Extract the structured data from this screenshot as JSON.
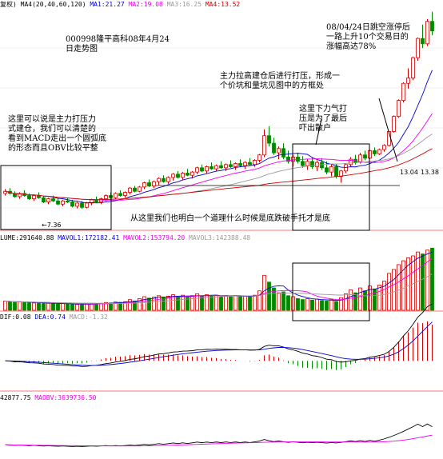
{
  "header": {
    "main": [
      {
        "text": "复权)",
        "color": "#000000"
      },
      {
        "text": "MA4(20,40,60,120)",
        "color": "#000000"
      },
      {
        "text": "MA1:21.27",
        "color": "#0000cc"
      },
      {
        "text": "MA2:19.08",
        "color": "#ee00ee"
      },
      {
        "text": "MA3:16.25",
        "color": "#999999"
      },
      {
        "text": "MA4:13.52",
        "color": "#cc0000"
      }
    ],
    "volume": [
      {
        "text": "LUME:291640.88",
        "color": "#000000"
      },
      {
        "text": "MAVOL1:172182.41",
        "color": "#0000cc"
      },
      {
        "text": "MAVOL2:153794.20",
        "color": "#ee00ee"
      },
      {
        "text": "MAVOL3:142388.48",
        "color": "#999999"
      }
    ],
    "macd": [
      {
        "text": "DIF:0.08",
        "color": "#000000"
      },
      {
        "text": "DEA:0.74",
        "color": "#0000cc"
      },
      {
        "text": "MACD:-1.32",
        "color": "#999999"
      }
    ],
    "obv": [
      {
        "text": "42877.75",
        "color": "#000000"
      },
      {
        "text": "MAOBV:3639736.50",
        "color": "#ee00ee"
      }
    ]
  },
  "annotations": {
    "title": [
      "000998隆平高科08年4月24",
      "日走势图"
    ],
    "left_note": [
      "这里可以说是主力打压力",
      "式建仓，我们可以清楚的",
      "看到MACD走出一个圆弧底",
      "的形态而且OBV比较平整"
    ],
    "top_note": [
      "主力拉高建仓后进行打压，形成一",
      "个价坑和量坑见图中的方框处"
    ],
    "center_note": [
      "这里下力气打",
      "压是为了最后",
      "吓出散户"
    ],
    "right_note": [
      "08/04/24日跳空涨停后",
      "一路上升10个交易日的",
      "涨幅高达78%"
    ],
    "bottom_note": "从这里我们也明白一个道理什么时候是底跌破手托才是底",
    "low_label": "←7.36",
    "price_label": "13.04",
    "price_label2": "13.38"
  },
  "chart_data": {
    "type": "candlestick",
    "title": "000998隆平高科08年4月24日走势图",
    "price_ylim": [
      5.5,
      26
    ],
    "volume_ylim": [
      0,
      700000
    ],
    "macd_ylim": [
      -1.6,
      2.2
    ],
    "obv_ylim": [
      -3000000,
      10000000
    ],
    "colors": {
      "up": "#cc0000",
      "down": "#008800",
      "ma1": "#0000cc",
      "ma2": "#ee00ee",
      "ma3": "#999999",
      "ma4": "#cc0000"
    },
    "candles": [
      [
        8.8,
        9.2,
        8.6,
        9.0
      ],
      [
        9.0,
        9.3,
        8.7,
        8.8
      ],
      [
        8.8,
        9.0,
        8.4,
        8.5
      ],
      [
        8.5,
        8.9,
        8.3,
        8.8
      ],
      [
        8.8,
        9.1,
        8.5,
        8.6
      ],
      [
        8.6,
        8.8,
        8.2,
        8.3
      ],
      [
        8.3,
        8.7,
        8.1,
        8.6
      ],
      [
        8.6,
        8.9,
        8.3,
        8.4
      ],
      [
        8.4,
        8.6,
        7.9,
        8.0
      ],
      [
        8.0,
        8.4,
        7.8,
        8.3
      ],
      [
        8.3,
        8.6,
        8.0,
        8.1
      ],
      [
        8.1,
        8.3,
        7.7,
        7.8
      ],
      [
        7.8,
        8.2,
        7.6,
        8.1
      ],
      [
        8.1,
        8.4,
        7.9,
        8.0
      ],
      [
        8.0,
        8.2,
        7.5,
        7.6
      ],
      [
        7.6,
        8.0,
        7.4,
        7.9
      ],
      [
        7.9,
        8.1,
        7.36,
        7.5
      ],
      [
        7.5,
        8.0,
        7.4,
        7.9
      ],
      [
        7.9,
        8.3,
        7.7,
        8.2
      ],
      [
        8.2,
        8.5,
        7.9,
        8.0
      ],
      [
        8.0,
        8.4,
        7.8,
        8.3
      ],
      [
        8.3,
        8.7,
        8.1,
        8.6
      ],
      [
        8.6,
        8.9,
        8.3,
        8.4
      ],
      [
        8.4,
        8.9,
        8.3,
        8.8
      ],
      [
        8.8,
        9.1,
        8.5,
        8.6
      ],
      [
        8.6,
        9.0,
        8.4,
        8.9
      ],
      [
        8.9,
        9.4,
        8.7,
        9.3
      ],
      [
        9.3,
        9.5,
        8.9,
        9.0
      ],
      [
        9.0,
        9.5,
        8.9,
        9.4
      ],
      [
        9.4,
        9.9,
        9.2,
        9.8
      ],
      [
        9.8,
        10.1,
        9.4,
        9.5
      ],
      [
        9.5,
        10.0,
        9.3,
        9.9
      ],
      [
        9.9,
        10.3,
        9.6,
        10.2
      ],
      [
        10.2,
        10.5,
        9.8,
        9.9
      ],
      [
        9.9,
        10.4,
        9.7,
        10.3
      ],
      [
        10.3,
        10.7,
        10.0,
        10.6
      ],
      [
        10.6,
        10.9,
        10.2,
        10.3
      ],
      [
        10.3,
        10.8,
        10.1,
        10.7
      ],
      [
        10.7,
        11.1,
        10.4,
        10.5
      ],
      [
        10.5,
        10.9,
        10.2,
        10.8
      ],
      [
        10.8,
        11.3,
        10.6,
        11.2
      ],
      [
        11.2,
        11.5,
        10.8,
        10.9
      ],
      [
        10.9,
        11.4,
        10.7,
        11.3
      ],
      [
        11.3,
        11.7,
        11.0,
        11.1
      ],
      [
        11.1,
        11.5,
        10.9,
        11.4
      ],
      [
        11.4,
        11.8,
        11.1,
        11.2
      ],
      [
        11.2,
        11.6,
        10.9,
        11.5
      ],
      [
        11.5,
        11.9,
        11.2,
        11.3
      ],
      [
        11.3,
        11.7,
        11.0,
        11.6
      ],
      [
        11.6,
        12.0,
        11.3,
        11.4
      ],
      [
        11.4,
        11.8,
        11.1,
        11.7
      ],
      [
        11.7,
        12.1,
        11.4,
        11.5
      ],
      [
        11.5,
        12.0,
        11.3,
        11.9
      ],
      [
        11.9,
        12.5,
        11.7,
        12.4
      ],
      [
        12.4,
        14.8,
        12.2,
        14.2
      ],
      [
        14.2,
        15.1,
        13.2,
        13.5
      ],
      [
        13.5,
        14.0,
        12.4,
        12.6
      ],
      [
        12.6,
        13.2,
        12.0,
        13.0
      ],
      [
        13.0,
        13.5,
        12.0,
        12.2
      ],
      [
        12.2,
        12.8,
        11.6,
        11.8
      ],
      [
        11.8,
        12.4,
        11.3,
        12.2
      ],
      [
        12.2,
        12.6,
        11.6,
        11.8
      ],
      [
        11.8,
        12.3,
        11.2,
        11.4
      ],
      [
        11.4,
        12.0,
        11.0,
        11.8
      ],
      [
        11.8,
        12.2,
        11.1,
        11.3
      ],
      [
        11.3,
        11.9,
        10.9,
        11.7
      ],
      [
        11.7,
        12.1,
        11.0,
        11.2
      ],
      [
        11.2,
        11.8,
        10.6,
        10.8
      ],
      [
        10.8,
        11.5,
        10.4,
        11.3
      ],
      [
        11.3,
        11.6,
        10.2,
        10.4
      ],
      [
        10.4,
        11.0,
        9.8,
        10.9
      ],
      [
        10.9,
        11.6,
        10.7,
        11.5
      ],
      [
        11.5,
        12.2,
        11.3,
        12.0
      ],
      [
        12.0,
        12.4,
        11.5,
        11.7
      ],
      [
        11.7,
        12.6,
        11.6,
        12.4
      ],
      [
        12.4,
        12.8,
        11.9,
        12.1
      ],
      [
        12.1,
        12.9,
        12.0,
        12.8
      ],
      [
        12.8,
        13.1,
        12.3,
        12.5
      ],
      [
        12.5,
        13.0,
        12.4,
        12.9
      ],
      [
        12.9,
        13.4,
        12.7,
        13.3
      ],
      [
        13.3,
        14.6,
        13.2,
        14.6
      ],
      [
        14.6,
        16.1,
        14.5,
        16.0
      ],
      [
        16.0,
        17.6,
        15.9,
        17.5
      ],
      [
        17.5,
        19.2,
        17.3,
        19.1
      ],
      [
        19.1,
        20.5,
        18.6,
        19.6
      ],
      [
        19.6,
        21.6,
        19.4,
        21.5
      ],
      [
        21.5,
        23.4,
        21.2,
        23.3
      ],
      [
        23.3,
        24.6,
        22.4,
        22.8
      ],
      [
        22.8,
        25.1,
        22.6,
        24.9
      ],
      [
        24.9,
        25.8,
        23.6,
        24.0
      ]
    ],
    "volume": [
      95000,
      90000,
      80000,
      85000,
      82000,
      78000,
      75000,
      80000,
      70000,
      72000,
      68000,
      65000,
      70000,
      66000,
      62000,
      60000,
      58000,
      64000,
      70000,
      68000,
      72000,
      80000,
      76000,
      85000,
      82000,
      88000,
      110000,
      95000,
      120000,
      140000,
      125000,
      135000,
      150000,
      130000,
      145000,
      160000,
      140000,
      155000,
      135000,
      150000,
      170000,
      145000,
      160000,
      150000,
      155000,
      140000,
      150000,
      145000,
      150000,
      140000,
      145000,
      140000,
      155000,
      200000,
      360000,
      290000,
      230000,
      180000,
      190000,
      150000,
      140000,
      120000,
      110000,
      120000,
      105000,
      115000,
      100000,
      95000,
      110000,
      90000,
      130000,
      170000,
      210000,
      180000,
      230000,
      200000,
      250000,
      220000,
      260000,
      300000,
      380000,
      420000,
      470000,
      510000,
      540000,
      560000,
      600000,
      580000,
      620000,
      640000
    ],
    "obv_line": [
      0,
      -90000,
      -170000,
      -85000,
      -167000,
      -245000,
      -170000,
      -250000,
      -320000,
      -248000,
      -316000,
      -381000,
      -311000,
      -377000,
      -439000,
      -379000,
      -437000,
      -373000,
      -303000,
      -371000,
      -299000,
      -219000,
      -295000,
      -210000,
      -292000,
      -204000,
      -94000,
      -189000,
      -69000,
      71000,
      -54000,
      81000,
      231000,
      101000,
      246000,
      406000,
      266000,
      421000,
      286000,
      436000,
      606000,
      461000,
      621000,
      471000,
      626000,
      486000,
      636000,
      491000,
      641000,
      501000,
      646000,
      506000,
      661000,
      861000,
      1221000,
      931000,
      701000,
      881000,
      691000,
      541000,
      681000,
      561000,
      451000,
      571000,
      466000,
      581000,
      481000,
      386000,
      496000,
      406000,
      536000,
      706000,
      916000,
      736000,
      966000,
      766000,
      1016000,
      796000,
      1056000,
      1356000,
      1736000,
      2156000,
      2626000,
      3136000,
      3676000,
      4236000,
      4836000,
      4256000,
      4876000,
      4236000
    ],
    "range_box": {
      "label": "方框处",
      "from_index": 48,
      "to_index": 65
    }
  }
}
